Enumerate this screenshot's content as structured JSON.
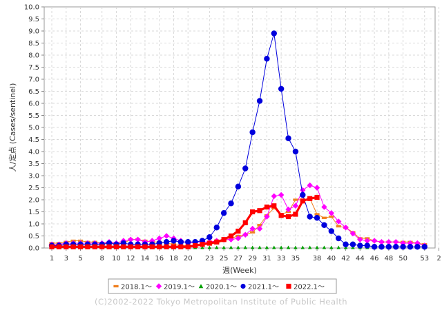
{
  "chart_data": {
    "type": "line",
    "ylabel": "人/定点 (Cases/sentinel)",
    "xlabel": "週(Week)",
    "ylim": [
      0,
      10
    ],
    "yticks": [
      "0.0",
      "0.5",
      "1.0",
      "1.5",
      "2.0",
      "2.5",
      "3.0",
      "3.5",
      "4.0",
      "4.5",
      "5.0",
      "5.5",
      "6.0",
      "6.5",
      "7.0",
      "7.5",
      "8.0",
      "8.5",
      "9.0",
      "9.5",
      "10.0"
    ],
    "xticks": [
      "1",
      "3",
      "5",
      "8",
      "10",
      "12",
      "14",
      "16",
      "18",
      "20",
      "23",
      "25",
      "27",
      "29",
      "31",
      "33",
      "35",
      "38",
      "40",
      "42",
      "44",
      "46",
      "48",
      "50",
      "53",
      "2"
    ],
    "grid": true,
    "legend_position": "bottom",
    "footer": "(C)2002-2022 Tokyo Metropolitan Institute of Public Health",
    "series": [
      {
        "name": "2018.1～",
        "color": "#f08020",
        "marker": "dash",
        "values": [
          0.2,
          0.2,
          0.25,
          0.3,
          0.3,
          0.25,
          0.25,
          0.2,
          0.2,
          0.2,
          0.2,
          0.35,
          0.35,
          0.3,
          0.25,
          0.25,
          0.2,
          0.15,
          0.1,
          0.1,
          0.1,
          0.15,
          0.15,
          0.2,
          0.3,
          0.4,
          0.5,
          0.55,
          0.65,
          0.95,
          1.35,
          1.65,
          1.4,
          1.5,
          2.0,
          2.0,
          2.05,
          1.4,
          1.25,
          1.3,
          0.9,
          0.85,
          0.65,
          0.4,
          0.4,
          0.3,
          0.25,
          0.25,
          0.25,
          0.25,
          0.25,
          0.2,
          0.15
        ]
      },
      {
        "name": "2019.1～",
        "color": "#ff00ff",
        "marker": "diamond",
        "values": [
          0.15,
          0.15,
          0.2,
          0.2,
          0.2,
          0.2,
          0.2,
          0.2,
          0.25,
          0.2,
          0.3,
          0.35,
          0.35,
          0.25,
          0.3,
          0.4,
          0.5,
          0.4,
          0.3,
          0.2,
          0.25,
          0.25,
          0.25,
          0.3,
          0.35,
          0.35,
          0.4,
          0.55,
          0.8,
          0.8,
          1.3,
          2.15,
          2.2,
          1.6,
          1.75,
          2.4,
          2.6,
          2.5,
          1.7,
          1.45,
          1.1,
          0.85,
          0.6,
          0.35,
          0.3,
          0.3,
          0.25,
          0.25,
          0.25,
          0.2,
          0.2,
          0.2,
          0.1
        ]
      },
      {
        "name": "2020.1～",
        "color": "#00a000",
        "marker": "triangle",
        "values": [
          0.15,
          0.15,
          0.15,
          0.2,
          0.2,
          0.2,
          0.15,
          0.15,
          0.1,
          0.1,
          0.05,
          0.05,
          0.03,
          0.02,
          0.02,
          0.02,
          0.02,
          0.02,
          0.02,
          0.02,
          0.02,
          0.02,
          0.02,
          0.02,
          0.02,
          0.02,
          0.02,
          0.02,
          0.02,
          0.02,
          0.02,
          0.02,
          0.02,
          0.02,
          0.02,
          0.02,
          0.02,
          0.02,
          0.02,
          0.02,
          0.02,
          0.02,
          0.02,
          0.02,
          0.02,
          0.02,
          0.02,
          0.02,
          0.02,
          0.02,
          0.02,
          0.02,
          0.02
        ]
      },
      {
        "name": "2021.1～",
        "color": "#0000dd",
        "marker": "circle",
        "values": [
          0.1,
          0.1,
          0.15,
          0.15,
          0.15,
          0.15,
          0.15,
          0.15,
          0.2,
          0.15,
          0.2,
          0.15,
          0.15,
          0.15,
          0.15,
          0.2,
          0.25,
          0.3,
          0.25,
          0.25,
          0.25,
          0.3,
          0.45,
          0.85,
          1.45,
          1.85,
          2.55,
          3.3,
          4.8,
          6.1,
          7.85,
          8.9,
          6.6,
          4.55,
          4.0,
          2.2,
          1.3,
          1.25,
          0.95,
          0.7,
          0.4,
          0.15,
          0.15,
          0.1,
          0.1,
          0.05,
          0.05,
          0.05,
          0.05,
          0.05,
          0.05,
          0.05,
          0.05
        ]
      },
      {
        "name": "2022.1～",
        "color": "#ff0000",
        "marker": "square",
        "values": [
          0.05,
          0.05,
          0.05,
          0.05,
          0.05,
          0.05,
          0.05,
          0.05,
          0.05,
          0.05,
          0.05,
          0.05,
          0.05,
          0.05,
          0.05,
          0.05,
          0.05,
          0.05,
          0.05,
          0.05,
          0.1,
          0.15,
          0.2,
          0.25,
          0.35,
          0.5,
          0.7,
          1.05,
          1.5,
          1.55,
          1.7,
          1.75,
          1.35,
          1.3,
          1.4,
          1.95,
          2.05,
          2.1
        ]
      }
    ]
  }
}
